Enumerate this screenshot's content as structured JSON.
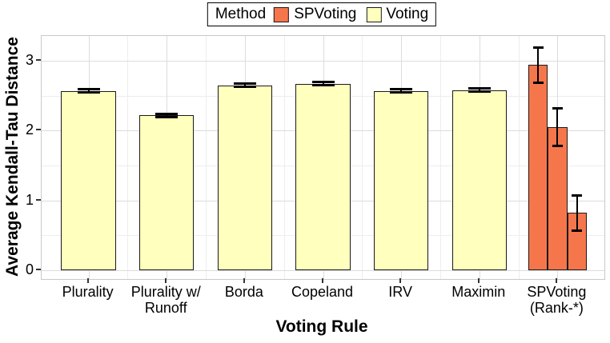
{
  "legend": {
    "title": "Method",
    "entries": [
      {
        "label": "SPVoting",
        "color": "#F6764C"
      },
      {
        "label": "Voting",
        "color": "#FFFFBE"
      }
    ]
  },
  "chart_data": {
    "type": "bar",
    "title": "",
    "xlabel": "Voting Rule",
    "ylabel": "Average Kendall-Tau Distance",
    "ylim": [
      0,
      3.36
    ],
    "yticks": [
      0,
      1,
      2,
      3
    ],
    "grid": "major+minor",
    "legend_position": "top-center",
    "categories": [
      "Plurality",
      "Plurality w/\nRunoff",
      "Borda",
      "Copeland",
      "IRV",
      "Maximin",
      "SPVoting\n(Rank-*)"
    ],
    "series_colors": {
      "SPVoting": "#F6764C",
      "Voting": "#FFFFBE"
    },
    "groups": [
      {
        "category": "Plurality",
        "bars": [
          {
            "series": "Voting",
            "value": 2.57,
            "error": 0.03
          }
        ]
      },
      {
        "category": "Plurality w/ Runoff",
        "bars": [
          {
            "series": "Voting",
            "value": 2.22,
            "error": 0.03
          }
        ]
      },
      {
        "category": "Borda",
        "bars": [
          {
            "series": "Voting",
            "value": 2.65,
            "error": 0.03
          }
        ]
      },
      {
        "category": "Copeland",
        "bars": [
          {
            "series": "Voting",
            "value": 2.67,
            "error": 0.03
          }
        ]
      },
      {
        "category": "IRV",
        "bars": [
          {
            "series": "Voting",
            "value": 2.57,
            "error": 0.03
          }
        ]
      },
      {
        "category": "Maximin",
        "bars": [
          {
            "series": "Voting",
            "value": 2.58,
            "error": 0.03
          }
        ]
      },
      {
        "category": "SPVoting (Rank-*)",
        "bars": [
          {
            "series": "SPVoting",
            "value": 2.94,
            "error": 0.26
          },
          {
            "series": "SPVoting",
            "value": 2.05,
            "error": 0.27
          },
          {
            "series": "SPVoting",
            "value": 0.82,
            "error": 0.26
          }
        ]
      }
    ]
  },
  "style": {
    "background": "#FFFFFF",
    "bar_border": "#1A1A1A",
    "grid_major": "#DCDCDC",
    "grid_minor": "#EDEDED",
    "panel_border": "#C9C9C9",
    "error_color": "#000000",
    "text_color": "#000000"
  }
}
